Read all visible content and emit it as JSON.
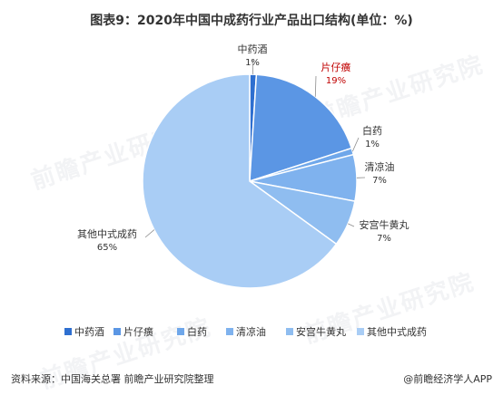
{
  "title": "图表9：2020年中国中成药行业产品出口结构(单位：%)",
  "watermark": "前瞻产业研究院",
  "source": "资料来源：中国海关总署 前瞻产业研究院整理",
  "brand": "@前瞻经济学人APP",
  "colors": {
    "highlight_label": "#c00000",
    "label": "#333333"
  },
  "chart_data": {
    "type": "pie",
    "title": "图表9：2020年中国中成药行业产品出口结构(单位：%)",
    "legend_position": "bottom",
    "series": [
      {
        "name": "中药酒",
        "value": 1,
        "label": "1%",
        "color": "#2e6fd0"
      },
      {
        "name": "片仔癀",
        "value": 19,
        "label": "19%",
        "color": "#5b96e4"
      },
      {
        "name": "白药",
        "value": 1,
        "label": "1%",
        "color": "#6fa7ea"
      },
      {
        "name": "清凉油",
        "value": 7,
        "label": "7%",
        "color": "#7fb2ee"
      },
      {
        "name": "安宫牛黄丸",
        "value": 7,
        "label": "7%",
        "color": "#8fbdf0"
      },
      {
        "name": "其他中式成药",
        "value": 65,
        "label": "65%",
        "color": "#a9cdf5"
      }
    ]
  }
}
